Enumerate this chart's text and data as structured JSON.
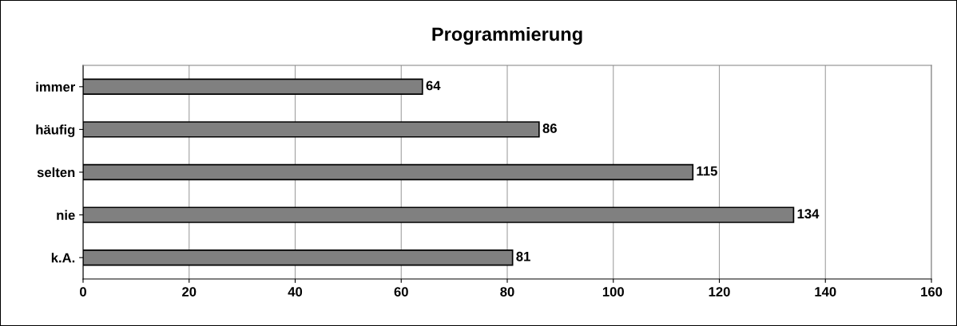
{
  "chart_data": {
    "type": "bar",
    "orientation": "horizontal",
    "title": "Programmierung",
    "categories": [
      "immer",
      "häufig",
      "selten",
      "nie",
      "k.A."
    ],
    "values": [
      64,
      86,
      115,
      134,
      81
    ],
    "color": "#808080",
    "xlim": [
      0,
      160
    ],
    "xticks": [
      0,
      20,
      40,
      60,
      80,
      100,
      120,
      140,
      160
    ],
    "grid": "x",
    "data_labels": true,
    "legend": false
  }
}
